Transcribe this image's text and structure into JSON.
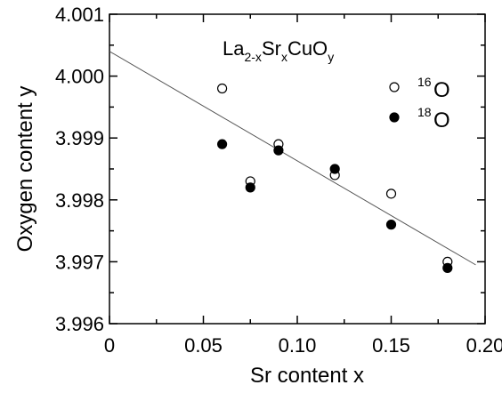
{
  "chart_data": {
    "type": "scatter",
    "xlabel": "Sr content x",
    "ylabel": "Oxygen content y",
    "xlim": [
      0,
      0.2
    ],
    "ylim": [
      3.996,
      4.001
    ],
    "x_ticks": [
      "0",
      "0.05",
      "0.10",
      "0.15",
      "0.20"
    ],
    "y_ticks": [
      "3.996",
      "3.997",
      "3.998",
      "3.999",
      "4.000",
      "4.001"
    ],
    "annotation": {
      "base1": "La",
      "sub1": "2-x",
      "base2": "Sr",
      "sub2": "x",
      "base3": "CuO",
      "sub3": "y"
    },
    "series": [
      {
        "mass": "16",
        "symbol": "O",
        "marker": "open-circle",
        "x": [
          0.06,
          0.075,
          0.09,
          0.12,
          0.15,
          0.18
        ],
        "y": [
          3.9998,
          3.9983,
          3.9989,
          3.9984,
          3.9981,
          3.997
        ]
      },
      {
        "mass": "18",
        "symbol": "O",
        "marker": "filled-circle",
        "x": [
          0.06,
          0.075,
          0.09,
          0.12,
          0.15,
          0.18
        ],
        "y": [
          3.9989,
          3.9982,
          3.9988,
          3.9985,
          3.9976,
          3.9969
        ]
      }
    ],
    "fit_line": {
      "x": [
        0,
        0.195
      ],
      "y": [
        4.0004,
        3.99695
      ]
    },
    "colors": {
      "axis": "#000000",
      "open_marker_fill": "#ffffff",
      "filled_marker_fill": "#000000",
      "fit_line": "#555555"
    }
  }
}
